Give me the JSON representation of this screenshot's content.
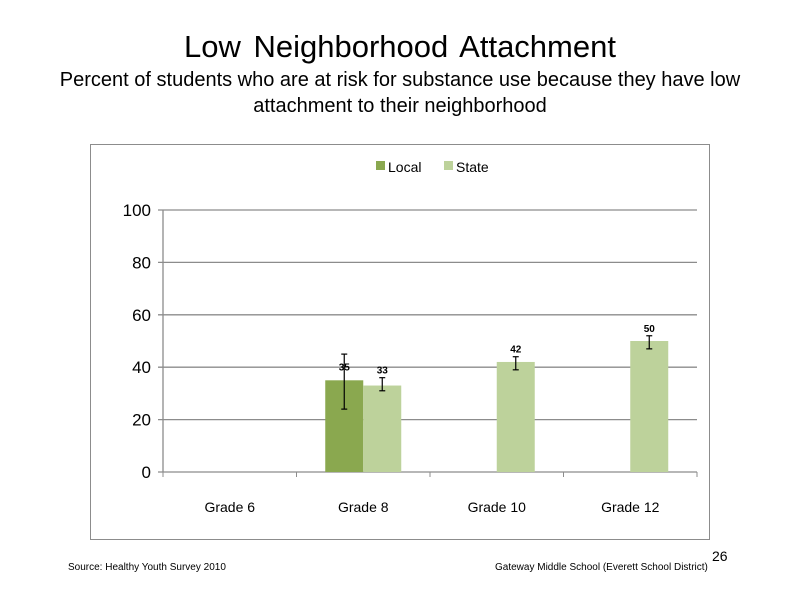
{
  "slide": {
    "title": "Low Neighborhood  Attachment",
    "subtitle": "Percent of students  who are at risk for substance  use because they have low attachment  to their neighborhood",
    "source": "Source: Healthy  Youth Survey 2010",
    "school": "Gateway Middle  School (Everett School District)",
    "page_number": "26"
  },
  "chart_data": {
    "type": "bar",
    "categories": [
      "Grade 6",
      "Grade 8",
      "Grade 10",
      "Grade 12"
    ],
    "series": [
      {
        "name": "Local",
        "color": "#8aa84f",
        "values": [
          null,
          35,
          null,
          null
        ],
        "labels": [
          "",
          "35",
          "",
          ""
        ],
        "error": [
          null,
          [
            24,
            45
          ],
          null,
          null
        ]
      },
      {
        "name": "State",
        "color": "#bdd29b",
        "values": [
          null,
          33,
          42,
          50
        ],
        "labels": [
          "",
          "33",
          "42",
          "50"
        ],
        "error": [
          null,
          [
            31,
            36
          ],
          [
            39,
            44
          ],
          [
            47,
            52
          ]
        ]
      }
    ],
    "ylim": [
      0,
      100
    ],
    "yticks": [
      "0",
      "20",
      "40",
      "60",
      "80",
      "100"
    ],
    "grid": true,
    "legend_position": "top"
  }
}
